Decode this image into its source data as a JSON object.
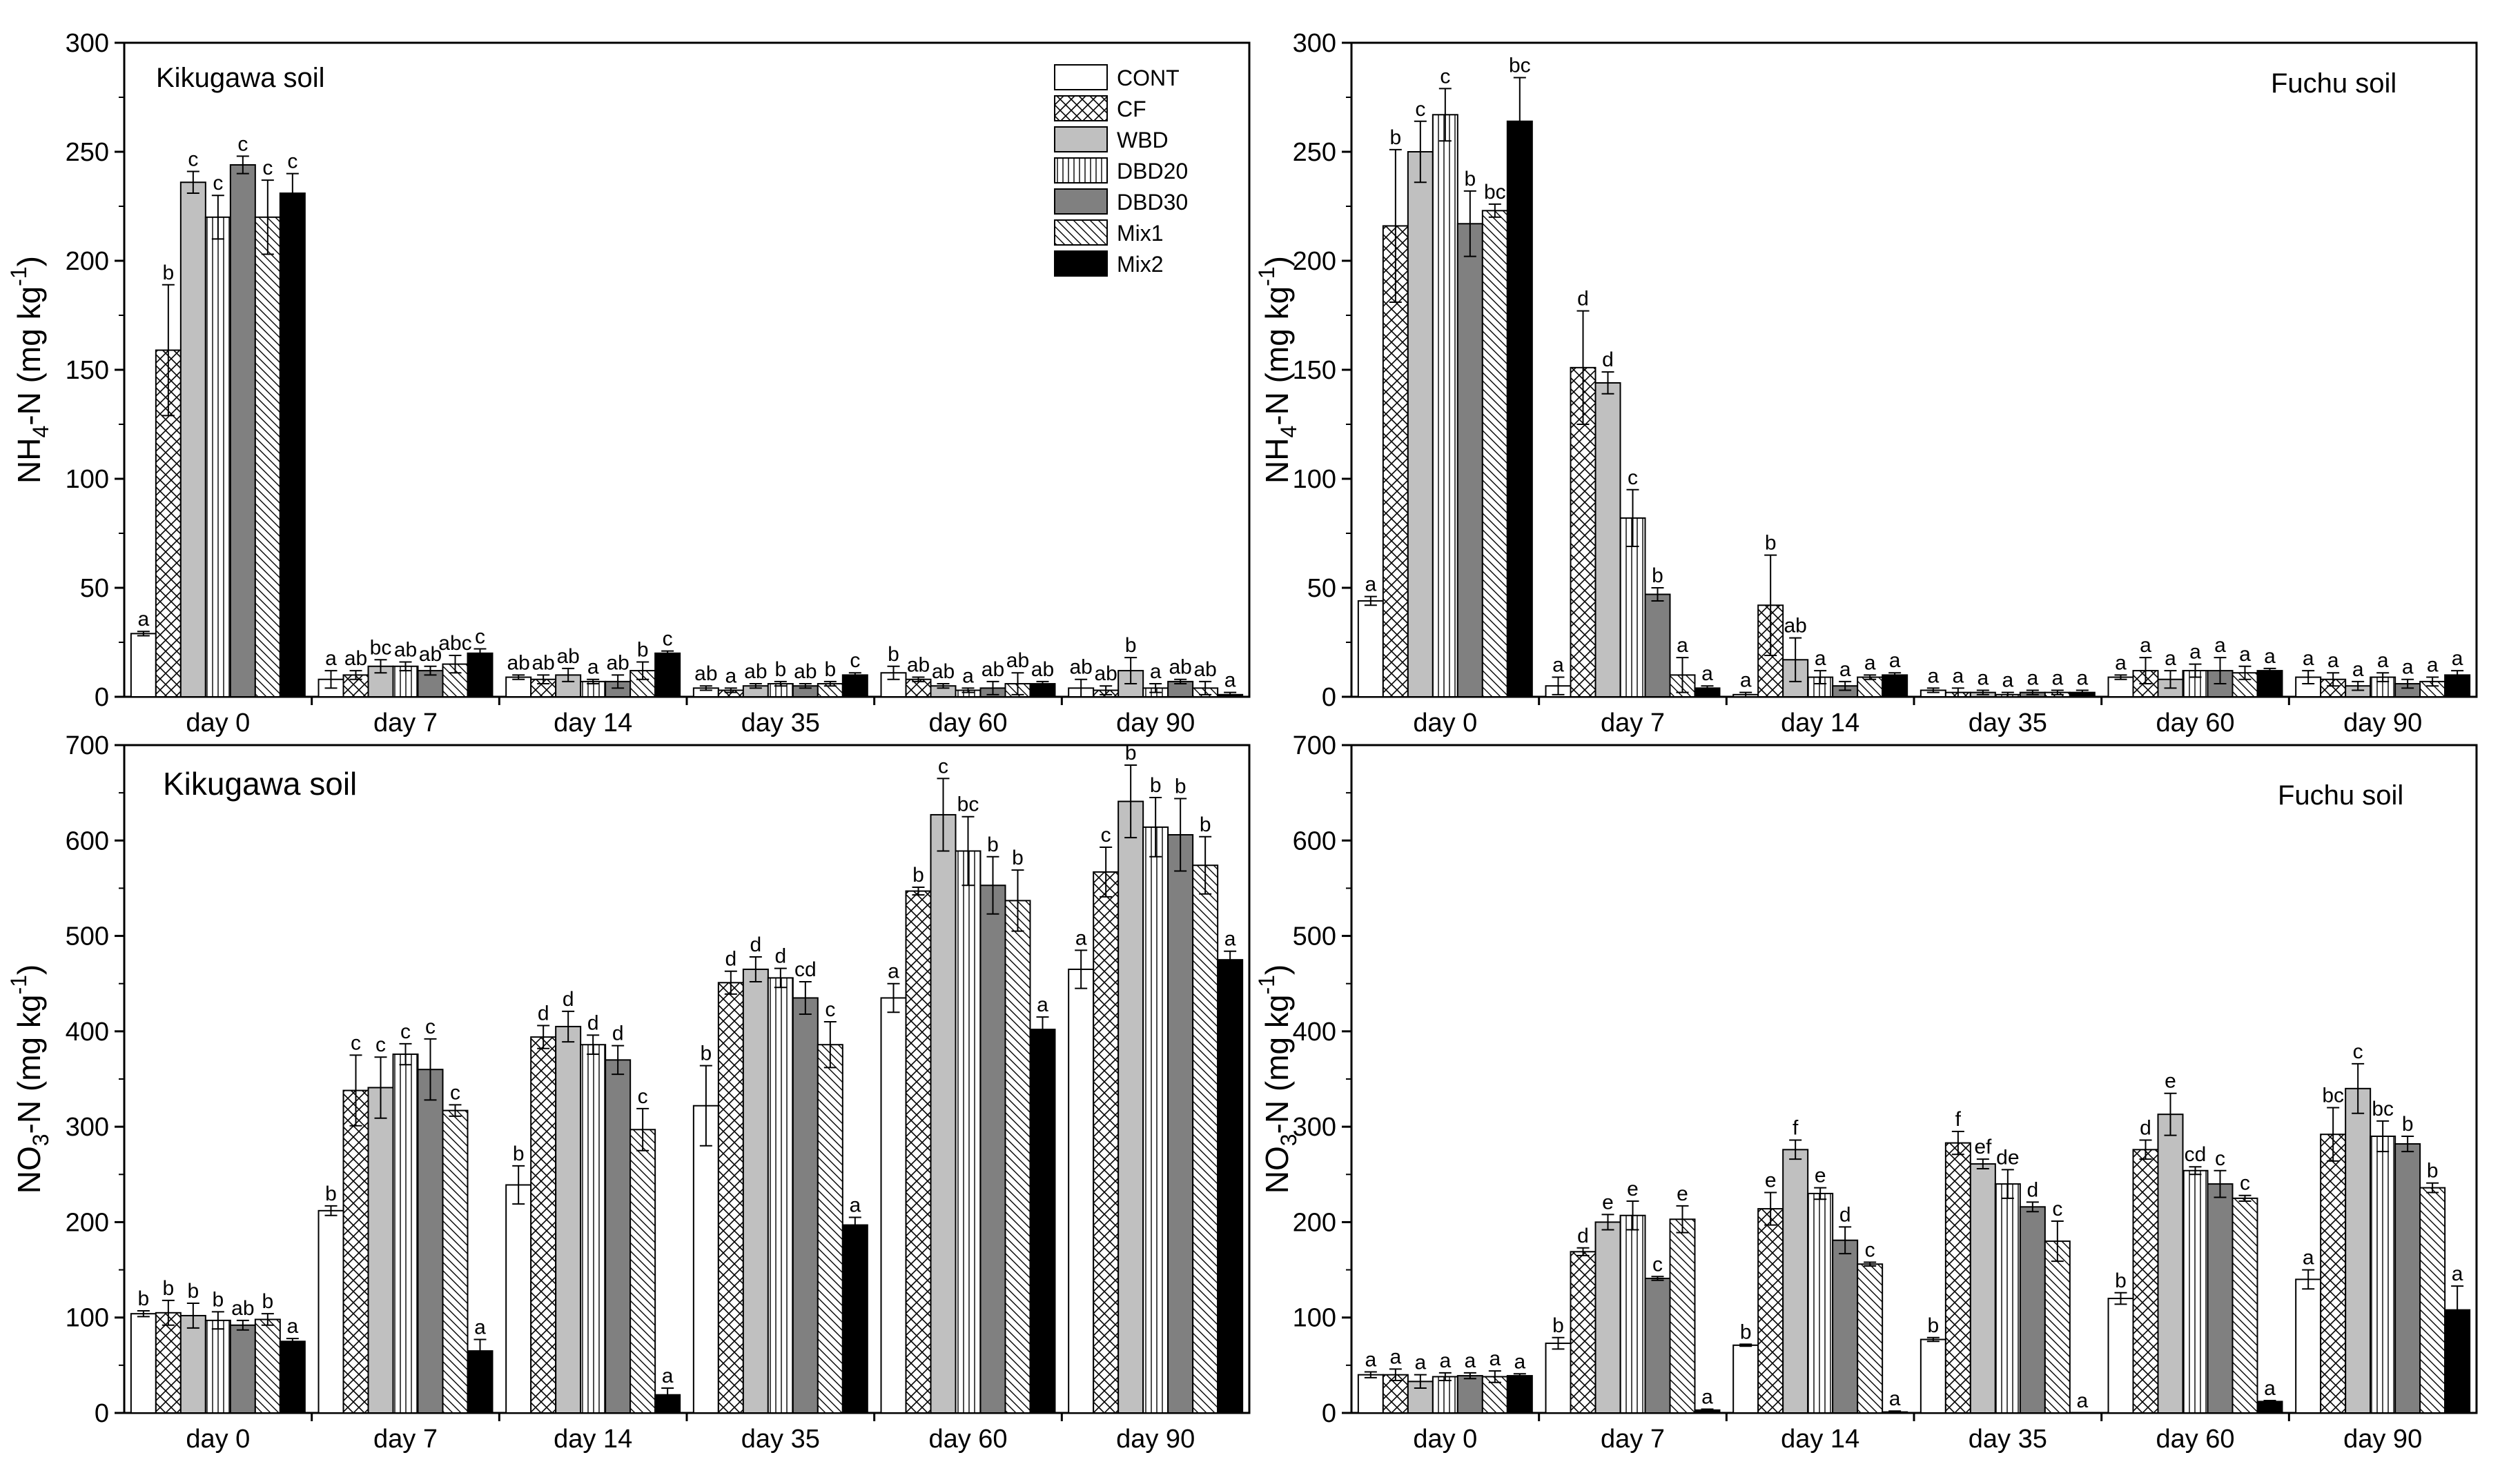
{
  "figure": {
    "treatments": [
      "CONT",
      "CF",
      "WBD",
      "DBD20",
      "DBD30",
      "Mix1",
      "Mix2"
    ],
    "days": [
      "day 0",
      "day 7",
      "day 14",
      "day 35",
      "day 60",
      "day 90"
    ],
    "legend_labels": [
      "CONT",
      "CF",
      "WBD",
      "DBD20",
      "DBD30",
      "Mix1",
      "Mix2"
    ],
    "fill_colors": {
      "CONT": "#ffffff",
      "CF": "#ffffff",
      "WBD": "#c0c0c0",
      "DBD20": "#ffffff",
      "DBD30": "#808080",
      "Mix1": "#ffffff",
      "Mix2": "#000000"
    }
  },
  "chart_data": [
    {
      "type": "bar",
      "title": "Kikugawa soil",
      "ylabel_parts": {
        "pre": "NH",
        "sub": "4",
        "mid": "-N (mg kg",
        "sup": "-1",
        "post": ")"
      },
      "ylim": [
        0,
        300
      ],
      "yticks": [
        "0",
        "50",
        "100",
        "150",
        "200",
        "250",
        "300"
      ],
      "categories": [
        "day 0",
        "day 7",
        "day 14",
        "day 35",
        "day 60",
        "day 90"
      ],
      "series": [
        {
          "name": "CONT",
          "values": [
            29,
            8,
            9,
            4,
            11,
            4
          ],
          "errors": [
            1,
            4,
            1,
            1,
            3,
            4
          ],
          "labels": [
            "a",
            "a",
            "ab",
            "ab",
            "b",
            "ab"
          ]
        },
        {
          "name": "CF",
          "values": [
            159,
            10,
            8,
            3,
            8,
            3
          ],
          "errors": [
            30,
            2,
            2,
            1,
            1,
            2
          ],
          "labels": [
            "b",
            "ab",
            "ab",
            "a",
            "ab",
            "ab"
          ]
        },
        {
          "name": "WBD",
          "values": [
            236,
            14,
            10,
            5,
            5,
            12
          ],
          "errors": [
            5,
            3,
            3,
            1,
            1,
            6
          ],
          "labels": [
            "c",
            "bc",
            "ab",
            "ab",
            "ab",
            "b"
          ]
        },
        {
          "name": "DBD20",
          "values": [
            220,
            14,
            7,
            6,
            3,
            4
          ],
          "errors": [
            10,
            2,
            1,
            1,
            1,
            2
          ],
          "labels": [
            "c",
            "ab",
            "a",
            "b",
            "a",
            "a"
          ]
        },
        {
          "name": "DBD30",
          "values": [
            244,
            12,
            7,
            5,
            4,
            7
          ],
          "errors": [
            4,
            2,
            3,
            1,
            3,
            1
          ],
          "labels": [
            "c",
            "ab",
            "ab",
            "ab",
            "ab",
            "ab"
          ]
        },
        {
          "name": "Mix1",
          "values": [
            220,
            15,
            12,
            6,
            6,
            4
          ],
          "errors": [
            17,
            4,
            4,
            1,
            5,
            3
          ],
          "labels": [
            "c",
            "abc",
            "b",
            "b",
            "ab",
            "ab"
          ]
        },
        {
          "name": "Mix2",
          "values": [
            231,
            20,
            20,
            10,
            6,
            1
          ],
          "errors": [
            9,
            2,
            1,
            1,
            1,
            1
          ],
          "labels": [
            "c",
            "c",
            "c",
            "c",
            "ab",
            "a"
          ]
        }
      ]
    },
    {
      "type": "bar",
      "title": "Fuchu soil",
      "ylabel_parts": {
        "pre": "NH",
        "sub": "4",
        "mid": "-N (mg kg",
        "sup": "-1",
        "post": ")"
      },
      "ylim": [
        0,
        300
      ],
      "yticks": [
        "0",
        "50",
        "100",
        "150",
        "200",
        "250",
        "300"
      ],
      "categories": [
        "day 0",
        "day 7",
        "day 14",
        "day 35",
        "day 60",
        "day 90"
      ],
      "series": [
        {
          "name": "CONT",
          "values": [
            44,
            5,
            1,
            3,
            9,
            9
          ],
          "errors": [
            2,
            4,
            1,
            1,
            1,
            3
          ],
          "labels": [
            "a",
            "a",
            "a",
            "a",
            "a",
            "a"
          ]
        },
        {
          "name": "CF",
          "values": [
            216,
            151,
            42,
            2,
            12,
            8
          ],
          "errors": [
            35,
            26,
            23,
            2,
            6,
            3
          ],
          "labels": [
            "b",
            "d",
            "b",
            "a",
            "a",
            "a"
          ]
        },
        {
          "name": "WBD",
          "values": [
            250,
            144,
            17,
            2,
            8,
            5
          ],
          "errors": [
            14,
            5,
            10,
            1,
            4,
            2
          ],
          "labels": [
            "c",
            "d",
            "ab",
            "a",
            "a",
            "a"
          ]
        },
        {
          "name": "DBD20",
          "values": [
            267,
            82,
            9,
            1,
            12,
            9
          ],
          "errors": [
            12,
            13,
            3,
            1,
            3,
            2
          ],
          "labels": [
            "c",
            "c",
            "a",
            "a",
            "a",
            "a"
          ]
        },
        {
          "name": "DBD30",
          "values": [
            217,
            47,
            5,
            2,
            12,
            6
          ],
          "errors": [
            15,
            3,
            2,
            1,
            6,
            2
          ],
          "labels": [
            "b",
            "b",
            "a",
            "a",
            "a",
            "a"
          ]
        },
        {
          "name": "Mix1",
          "values": [
            223,
            10,
            9,
            2,
            11,
            7
          ],
          "errors": [
            3,
            8,
            1,
            1,
            3,
            2
          ],
          "labels": [
            "bc",
            "a",
            "a",
            "a",
            "a",
            "a"
          ]
        },
        {
          "name": "Mix2",
          "values": [
            264,
            4,
            10,
            2,
            12,
            10
          ],
          "errors": [
            20,
            1,
            1,
            1,
            1,
            2
          ],
          "labels": [
            "bc",
            "a",
            "a",
            "a",
            "a",
            "a"
          ]
        }
      ]
    },
    {
      "type": "bar",
      "title": "Kikugawa soil",
      "ylabel_parts": {
        "pre": "NO",
        "sub": "3",
        "mid": "-N (mg kg",
        "sup": "-1",
        "post": ")"
      },
      "ylim": [
        0,
        700
      ],
      "yticks": [
        "0",
        "100",
        "200",
        "300",
        "400",
        "500",
        "600",
        "700"
      ],
      "categories": [
        "day 0",
        "day 7",
        "day 14",
        "day 35",
        "day 60",
        "day 90"
      ],
      "series": [
        {
          "name": "CONT",
          "values": [
            104,
            212,
            239,
            322,
            435,
            465
          ],
          "errors": [
            3,
            5,
            20,
            42,
            15,
            20
          ],
          "labels": [
            "b",
            "b",
            "b",
            "b",
            "a",
            "a"
          ]
        },
        {
          "name": "CF",
          "values": [
            105,
            338,
            394,
            451,
            547,
            567
          ],
          "errors": [
            13,
            37,
            12,
            12,
            4,
            26
          ],
          "labels": [
            "b",
            "c",
            "d",
            "d",
            "b",
            "c"
          ]
        },
        {
          "name": "WBD",
          "values": [
            102,
            341,
            405,
            465,
            627,
            641
          ],
          "errors": [
            13,
            32,
            16,
            13,
            38,
            38
          ],
          "labels": [
            "b",
            "c",
            "d",
            "d",
            "c",
            "b"
          ]
        },
        {
          "name": "DBD20",
          "values": [
            97,
            376,
            386,
            456,
            589,
            614
          ],
          "errors": [
            9,
            11,
            10,
            10,
            36,
            31
          ],
          "labels": [
            "b",
            "c",
            "d",
            "d",
            "bc",
            "b"
          ]
        },
        {
          "name": "DBD30",
          "values": [
            92,
            360,
            370,
            435,
            553,
            606
          ],
          "errors": [
            5,
            32,
            15,
            17,
            30,
            38
          ],
          "labels": [
            "ab",
            "c",
            "d",
            "cd",
            "b",
            "b"
          ]
        },
        {
          "name": "Mix1",
          "values": [
            98,
            317,
            297,
            386,
            537,
            574
          ],
          "errors": [
            6,
            6,
            22,
            24,
            32,
            30
          ],
          "labels": [
            "b",
            "c",
            "c",
            "c",
            "b",
            "b"
          ]
        },
        {
          "name": "Mix2",
          "values": [
            75,
            65,
            19,
            197,
            402,
            475
          ],
          "errors": [
            3,
            12,
            7,
            8,
            13,
            9
          ],
          "labels": [
            "a",
            "a",
            "a",
            "a",
            "a",
            "a"
          ]
        }
      ]
    },
    {
      "type": "bar",
      "title": "Fuchu soil",
      "ylabel_parts": {
        "pre": "NO",
        "sub": "3",
        "mid": "-N (mg kg",
        "sup": "-1",
        "post": ")"
      },
      "ylim": [
        0,
        700
      ],
      "yticks": [
        "0",
        "100",
        "200",
        "300",
        "400",
        "500",
        "600",
        "700"
      ],
      "categories": [
        "day 0",
        "day 7",
        "day 14",
        "day 35",
        "day 60",
        "day 90"
      ],
      "series": [
        {
          "name": "CONT",
          "values": [
            40,
            73,
            71,
            77,
            120,
            140
          ],
          "errors": [
            3,
            6,
            1,
            2,
            6,
            10
          ],
          "labels": [
            "a",
            "b",
            "b",
            "b",
            "b",
            "a"
          ]
        },
        {
          "name": "CF",
          "values": [
            40,
            169,
            214,
            283,
            276,
            292
          ],
          "errors": [
            6,
            4,
            17,
            12,
            10,
            28
          ],
          "labels": [
            "a",
            "d",
            "e",
            "f",
            "d",
            "bc"
          ]
        },
        {
          "name": "WBD",
          "values": [
            33,
            200,
            276,
            261,
            313,
            340
          ],
          "errors": [
            7,
            8,
            10,
            5,
            22,
            26
          ],
          "labels": [
            "a",
            "e",
            "f",
            "ef",
            "e",
            "c"
          ]
        },
        {
          "name": "DBD20",
          "values": [
            38,
            207,
            230,
            240,
            254,
            290
          ],
          "errors": [
            4,
            15,
            6,
            15,
            4,
            16
          ],
          "labels": [
            "a",
            "e",
            "e",
            "de",
            "cd",
            "bc"
          ]
        },
        {
          "name": "DBD30",
          "values": [
            39,
            141,
            181,
            216,
            240,
            282
          ],
          "errors": [
            3,
            2,
            14,
            5,
            14,
            8
          ],
          "labels": [
            "a",
            "c",
            "d",
            "d",
            "c",
            "b"
          ]
        },
        {
          "name": "Mix1",
          "values": [
            38,
            203,
            156,
            180,
            225,
            236
          ],
          "errors": [
            6,
            14,
            2,
            21,
            3,
            5
          ],
          "labels": [
            "a",
            "e",
            "c",
            "c",
            "c",
            "b"
          ]
        },
        {
          "name": "Mix2",
          "values": [
            39,
            3,
            1,
            0,
            12,
            108
          ],
          "errors": [
            2,
            1,
            1,
            0,
            1,
            25
          ],
          "labels": [
            "a",
            "a",
            "a",
            "a",
            "a",
            "a"
          ]
        }
      ]
    }
  ]
}
